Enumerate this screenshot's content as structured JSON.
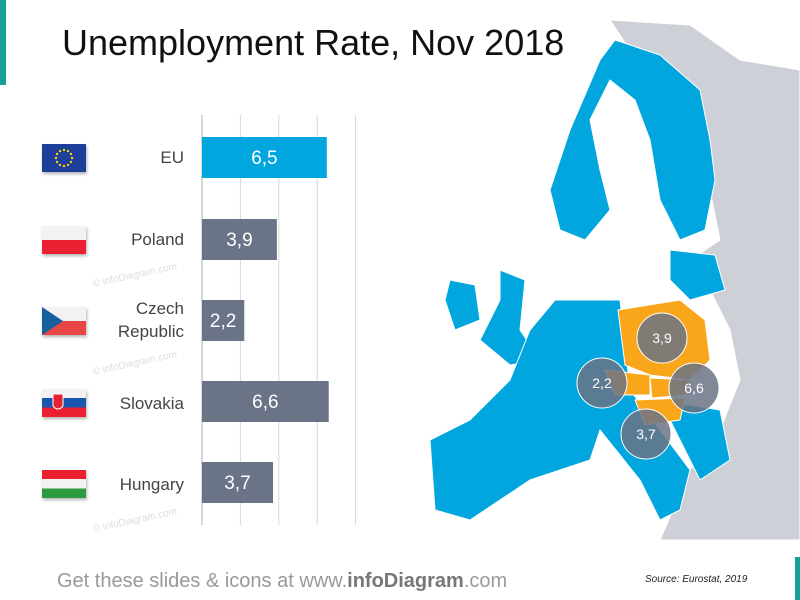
{
  "title": "Unemployment Rate, Nov 2018",
  "footer": {
    "prefix": "Get these slides & icons at www.",
    "brand": "infoDiagram",
    "suffix": ".com"
  },
  "source": "Source: Eurostat, 2019",
  "watermark": "© infoDiagram.com",
  "colors": {
    "eu_bar": "#00a6dd",
    "country_bar": "#6b7386",
    "highlight": "#f9a61a",
    "map_eu": "#00a6dd",
    "map_other": "#cdd0d6"
  },
  "chart_data": {
    "type": "bar",
    "orientation": "horizontal",
    "categories": [
      "EU",
      "Poland",
      "Czech Republic",
      "Slovakia",
      "Hungary"
    ],
    "values": [
      6.5,
      3.9,
      2.2,
      6.6,
      3.7
    ],
    "value_labels": [
      "6,5",
      "3,9",
      "2,2",
      "6,6",
      "3,7"
    ],
    "flags": [
      "eu-flag",
      "poland-flag",
      "czech-flag",
      "slovakia-flag",
      "hungary-flag"
    ],
    "xlim": [
      0,
      8
    ],
    "grid": true,
    "title": "Unemployment Rate, Nov 2018"
  },
  "map_bubbles": [
    {
      "country": "Poland",
      "label": "3,9"
    },
    {
      "country": "Czech Republic",
      "label": "2,2"
    },
    {
      "country": "Slovakia",
      "label": "6,6"
    },
    {
      "country": "Hungary",
      "label": "3,7"
    }
  ]
}
